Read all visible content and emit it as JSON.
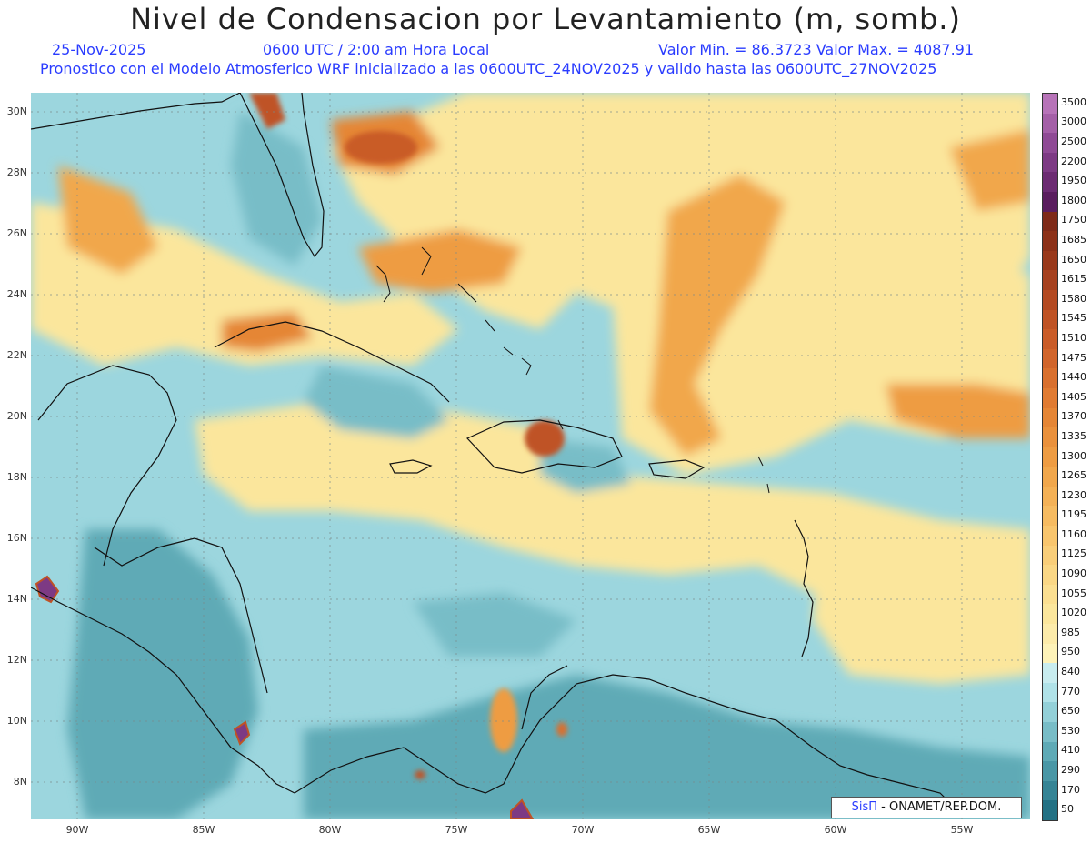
{
  "header": {
    "title": "Nivel de Condensacion por Levantamiento (m, somb.)",
    "date": "25-Nov-2025",
    "time": "0600 UTC / 2:00 am Hora Local",
    "range": "Valor Min. = 86.3723  Valor Max. = 4087.91",
    "forecast": "Pronostico con el Modelo Atmosferico WRF inicializado a las 0600UTC_24NOV2025 y valido hasta las  0600UTC_27NOV2025"
  },
  "axes": {
    "lat_labels": [
      "30N",
      "28N",
      "26N",
      "24N",
      "22N",
      "20N",
      "18N",
      "16N",
      "14N",
      "12N",
      "10N",
      "8N"
    ],
    "lon_labels": [
      "90W",
      "85W",
      "80W",
      "75W",
      "70W",
      "65W",
      "60W",
      "55W"
    ]
  },
  "colorbar": {
    "levels": [
      "3500",
      "3000",
      "2500",
      "2200",
      "1950",
      "1800",
      "1750",
      "1685",
      "1650",
      "1615",
      "1580",
      "1545",
      "1510",
      "1475",
      "1440",
      "1405",
      "1370",
      "1335",
      "1300",
      "1265",
      "1230",
      "1195",
      "1160",
      "1125",
      "1090",
      "1055",
      "1020",
      "985",
      "950",
      "840",
      "770",
      "650",
      "530",
      "410",
      "290",
      "170",
      "50"
    ],
    "colors": [
      "#b773b8",
      "#a45fa7",
      "#8f4a95",
      "#7d3a84",
      "#6c2b72",
      "#5a1d5e",
      "#7e2a18",
      "#8c3118",
      "#99391b",
      "#a6411f",
      "#b34a22",
      "#bf5325",
      "#c95c28",
      "#d1652b",
      "#d9702e",
      "#e07b32",
      "#e58636",
      "#ea913c",
      "#ee9c43",
      "#f1a74c",
      "#f4b156",
      "#f6bb61",
      "#f8c56d",
      "#f9ce79",
      "#fad785",
      "#fbdf91",
      "#fbe69c",
      "#fcebaa",
      "#fdf2b8",
      "#c8ecef",
      "#b0e2e8",
      "#93d0d8",
      "#78bdc7",
      "#5eaab6",
      "#4997a6",
      "#358495",
      "#237184"
    ]
  },
  "credit": {
    "brand": "SisΠ",
    "text": " - ONAMET/REP.DOM."
  }
}
